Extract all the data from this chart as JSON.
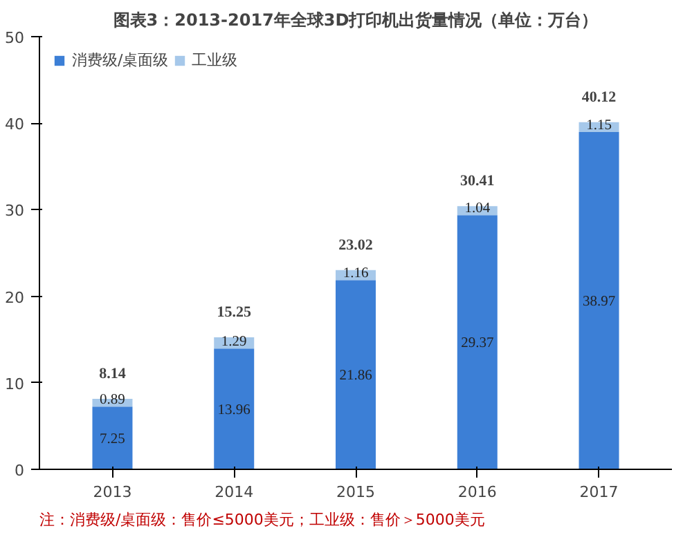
{
  "chart_data": {
    "type": "bar",
    "title": "图表3：2013-2017年全球3D打印机出货量情况（单位：万台）",
    "categories": [
      "2013",
      "2014",
      "2015",
      "2016",
      "2017"
    ],
    "stacked": true,
    "series": [
      {
        "name": "消费级/桌面级",
        "color": "#3c7fd6",
        "values": [
          7.25,
          13.96,
          21.86,
          29.37,
          38.97
        ]
      },
      {
        "name": "工业级",
        "color": "#a6c8ea",
        "values": [
          0.89,
          1.29,
          1.16,
          1.04,
          1.15
        ]
      }
    ],
    "totals": [
      "8.14",
      "15.25",
      "23.02",
      "30.41",
      "40.12"
    ],
    "data_labels": true,
    "ylim": [
      0,
      50
    ],
    "yticks": [
      0,
      10,
      20,
      30,
      40,
      50
    ],
    "grid": false,
    "legend": "top left",
    "annotations": [
      "注：消费级/桌面级：售价≤5000美元；工业级：售价＞5000美元"
    ]
  }
}
